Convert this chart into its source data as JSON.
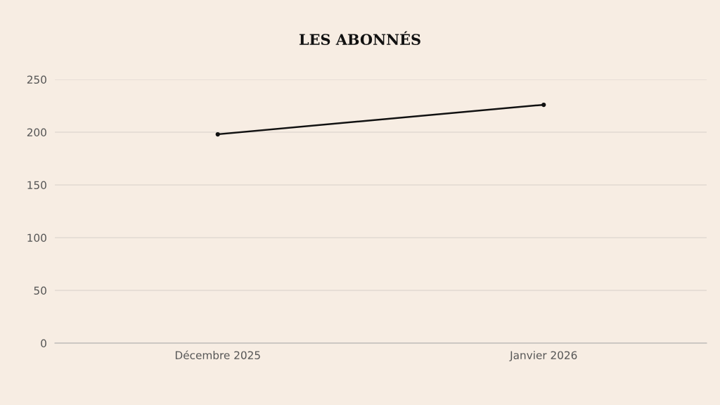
{
  "chart_data": {
    "type": "line",
    "title": "LES ABONNÉS",
    "categories": [
      "Décembre 2025",
      "Janvier 2026"
    ],
    "series": [
      {
        "color": "#111111",
        "values": [
          198,
          226
        ]
      }
    ],
    "ylim": [
      0,
      250
    ],
    "yticks": [
      0,
      50,
      100,
      150,
      200,
      250
    ],
    "grid": "y",
    "marker": "circle",
    "line_style": "solid",
    "legend": false
  }
}
